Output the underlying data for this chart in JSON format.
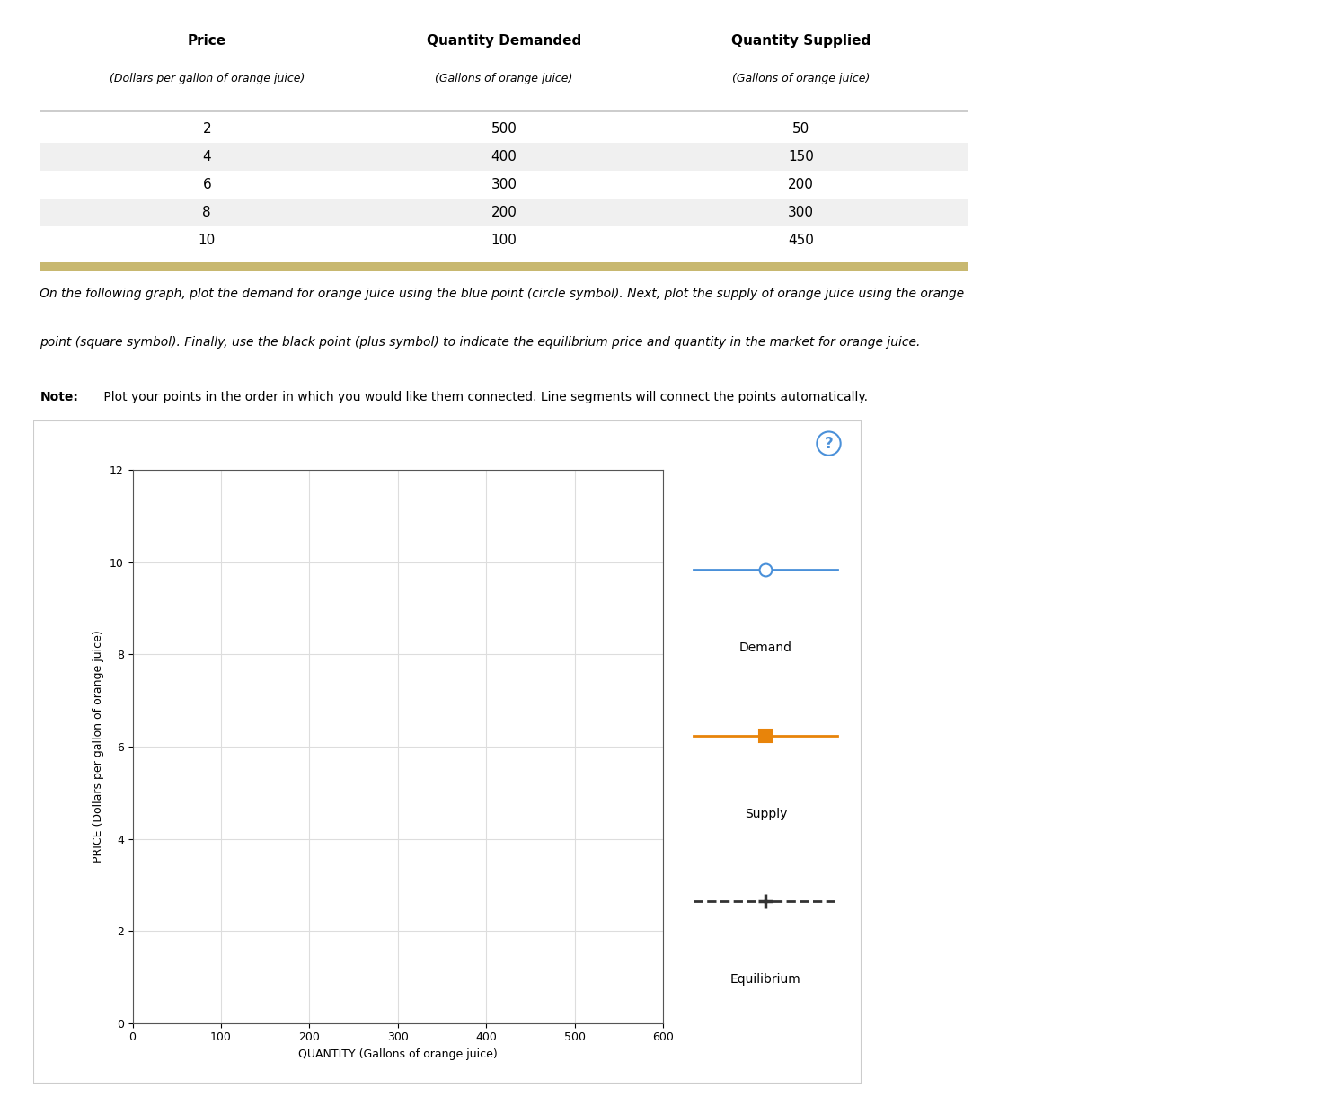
{
  "table": {
    "headers": [
      "Price",
      "Quantity Demanded",
      "Quantity Supplied"
    ],
    "subheaders": [
      "(Dollars per gallon of orange juice)",
      "(Gallons of orange juice)",
      "(Gallons of orange juice)"
    ],
    "rows": [
      [
        2,
        500,
        50
      ],
      [
        4,
        400,
        150
      ],
      [
        6,
        300,
        200
      ],
      [
        8,
        200,
        300
      ],
      [
        10,
        100,
        450
      ]
    ]
  },
  "instruction_line1": "On the following graph, plot the demand for orange juice using the blue point (circle symbol). Next, plot the supply of orange juice using the orange",
  "instruction_line2": "point (square symbol). Finally, use the black point (plus symbol) to indicate the equilibrium price and quantity in the market for orange juice.",
  "note_bold": "Note:",
  "note_rest": " Plot your points in the order in which you would like them connected. Line segments will connect the points automatically.",
  "graph": {
    "xlabel": "QUANTITY (Gallons of orange juice)",
    "ylabel": "PRICE (Dollars per gallon of orange juice)",
    "xlim": [
      0,
      600
    ],
    "ylim": [
      0,
      12
    ],
    "xticks": [
      0,
      100,
      200,
      300,
      400,
      500,
      600
    ],
    "yticks": [
      0,
      2,
      4,
      6,
      8,
      10,
      12
    ],
    "legend_items": [
      {
        "label": "Demand",
        "color": "#4A90D9",
        "marker": "o",
        "linestyle": "-",
        "markeredge": "white"
      },
      {
        "label": "Supply",
        "color": "#E8840A",
        "marker": "s",
        "linestyle": "-",
        "markeredge": "#E8840A"
      },
      {
        "label": "Equilibrium",
        "color": "#333333",
        "marker": "+",
        "linestyle": "--",
        "markeredge": "#333333"
      }
    ],
    "grid_color": "#DDDDDD"
  },
  "table_stripe_color": "#F0F0F0",
  "separator_color": "#C8B870",
  "outer_border_color": "#CCCCCC",
  "question_mark_color": "#4A90D9"
}
